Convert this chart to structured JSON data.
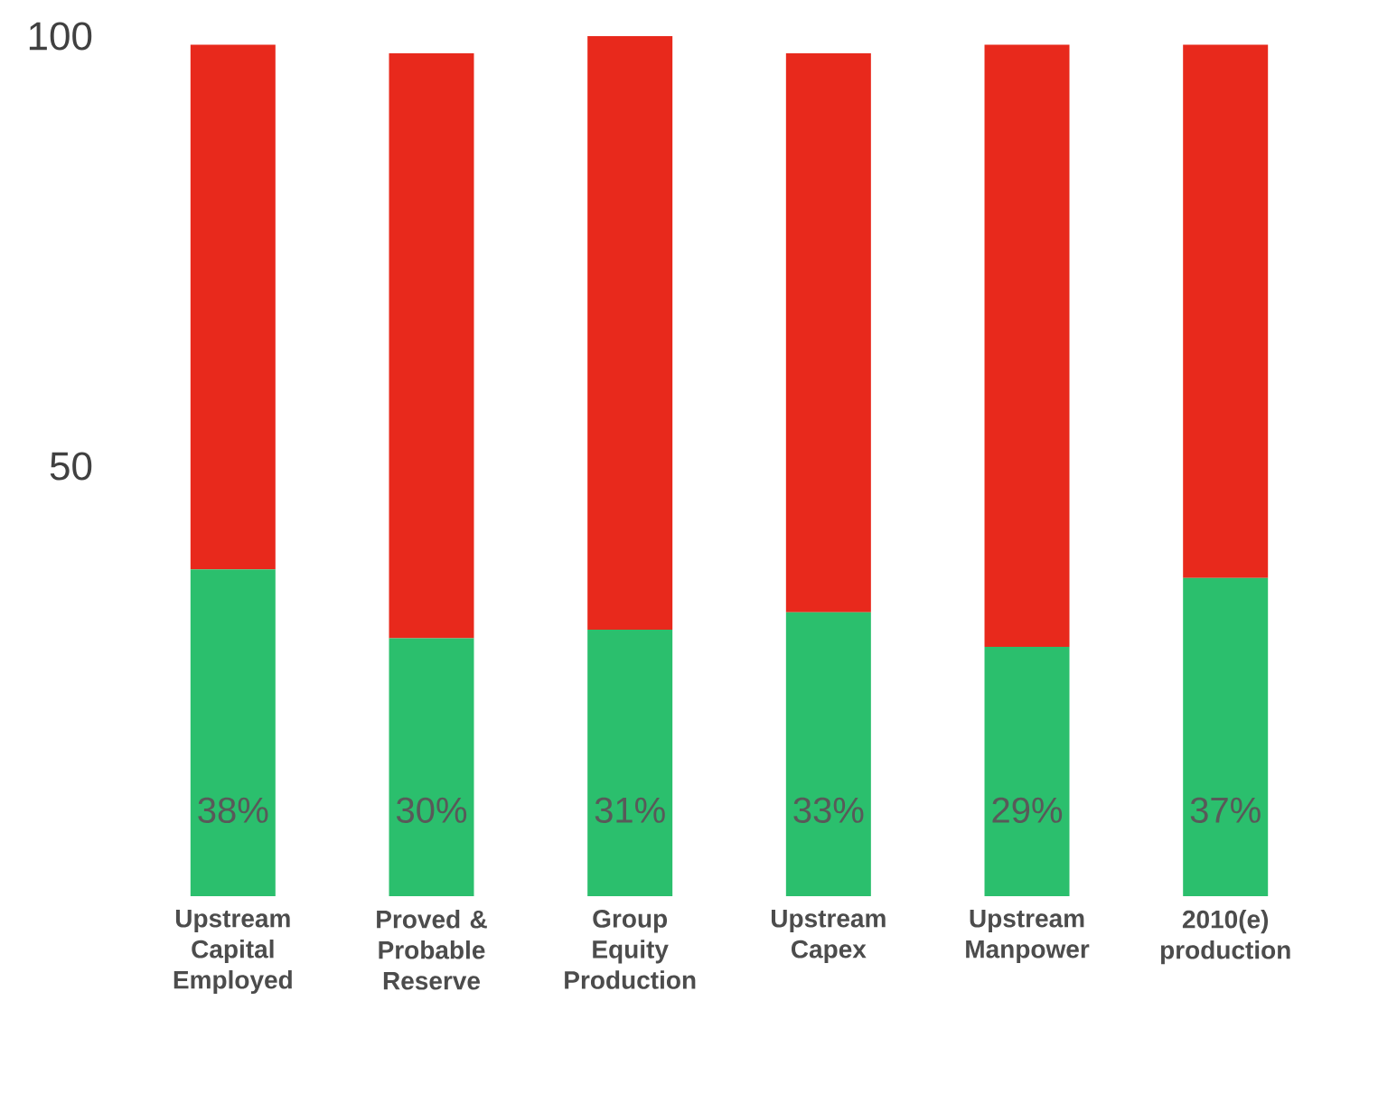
{
  "chart_data": {
    "type": "bar",
    "stacked": true,
    "categories": [
      "Upstream Capital Employed",
      "Proved & Probable Reserve",
      "Group Equity Production",
      "Upstream Capex",
      "Upstream Manpower",
      "2010(e) production"
    ],
    "series": [
      {
        "color": "#2bbf6d",
        "values": [
          38,
          30,
          31,
          33,
          29,
          37
        ],
        "value_labels": [
          "38%",
          "30%",
          "31%",
          "33%",
          "29%",
          "37%"
        ]
      },
      {
        "color": "#e8291c",
        "values": [
          61,
          68,
          69,
          65,
          70,
          62
        ]
      }
    ],
    "ylim": [
      0,
      100
    ],
    "yticks": [
      50,
      100
    ]
  }
}
